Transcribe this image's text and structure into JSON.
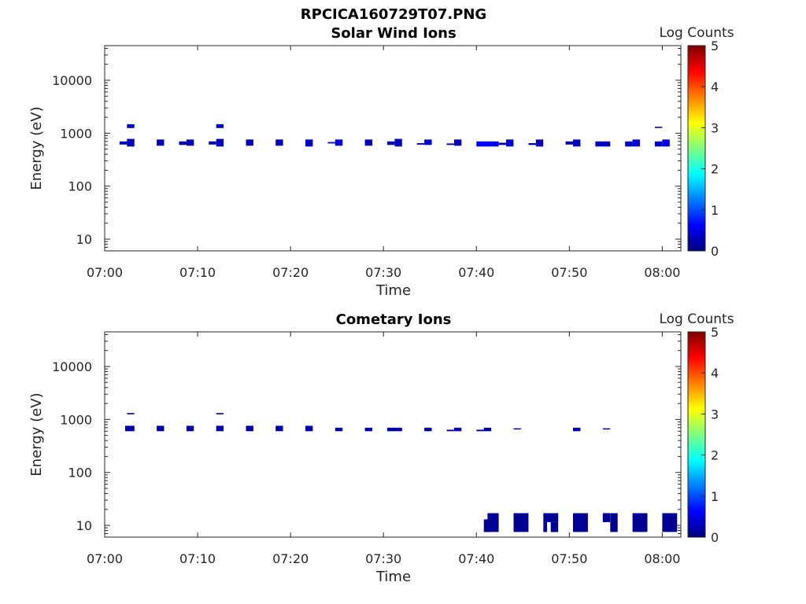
{
  "figure_title": "RPCICA160729T07.PNG",
  "colormap": [
    "#00007f",
    "#0000ff",
    "#007fff",
    "#00ffff",
    "#7fff7f",
    "#ffff00",
    "#ff7f00",
    "#ff0000",
    "#7f0000"
  ],
  "chart_data": [
    {
      "type": "heatmap",
      "title": "Solar Wind Ions",
      "xlabel": "Time",
      "ylabel": "Energy (eV)",
      "x_ticks": [
        "07:00",
        "07:10",
        "07:20",
        "07:30",
        "07:40",
        "07:50",
        "08:00"
      ],
      "x_range_minutes": [
        0,
        62
      ],
      "y_ticks": [
        "10",
        "100",
        "1000",
        "10000"
      ],
      "y_scale": "log",
      "y_range": [
        6,
        45000
      ],
      "colorbar": {
        "label": "Log Counts",
        "ticks": [
          "0",
          "1",
          "2",
          "3",
          "4",
          "5"
        ],
        "range": [
          0,
          5
        ]
      },
      "cells": [
        {
          "t0": 1.6,
          "t1": 2.4,
          "e0": 610,
          "e1": 700,
          "v": 0.2
        },
        {
          "t0": 2.4,
          "t1": 3.2,
          "e0": 560,
          "e1": 780,
          "v": 0.3
        },
        {
          "t0": 2.4,
          "t1": 3.2,
          "e0": 1250,
          "e1": 1480,
          "v": 0.3
        },
        {
          "t0": 5.6,
          "t1": 6.4,
          "e0": 580,
          "e1": 760,
          "v": 0.3
        },
        {
          "t0": 8.0,
          "t1": 8.8,
          "e0": 600,
          "e1": 700,
          "v": 0.2
        },
        {
          "t0": 8.8,
          "t1": 9.6,
          "e0": 580,
          "e1": 760,
          "v": 0.3
        },
        {
          "t0": 11.2,
          "t1": 12.0,
          "e0": 610,
          "e1": 700,
          "v": 0.2
        },
        {
          "t0": 12.0,
          "t1": 12.8,
          "e0": 560,
          "e1": 780,
          "v": 0.3
        },
        {
          "t0": 12.0,
          "t1": 12.8,
          "e0": 1250,
          "e1": 1480,
          "v": 0.3
        },
        {
          "t0": 15.2,
          "t1": 16.0,
          "e0": 580,
          "e1": 760,
          "v": 0.3
        },
        {
          "t0": 18.4,
          "t1": 19.2,
          "e0": 580,
          "e1": 760,
          "v": 0.3
        },
        {
          "t0": 21.6,
          "t1": 22.4,
          "e0": 560,
          "e1": 760,
          "v": 0.3
        },
        {
          "t0": 24.0,
          "t1": 24.8,
          "e0": 640,
          "e1": 680,
          "v": 0.2
        },
        {
          "t0": 24.8,
          "t1": 25.6,
          "e0": 580,
          "e1": 760,
          "v": 0.4
        },
        {
          "t0": 28.0,
          "t1": 28.8,
          "e0": 580,
          "e1": 760,
          "v": 0.3
        },
        {
          "t0": 30.4,
          "t1": 31.2,
          "e0": 600,
          "e1": 700,
          "v": 0.2
        },
        {
          "t0": 31.2,
          "t1": 32.0,
          "e0": 560,
          "e1": 780,
          "v": 0.3
        },
        {
          "t0": 33.6,
          "t1": 34.4,
          "e0": 610,
          "e1": 650,
          "v": 0.2
        },
        {
          "t0": 34.4,
          "t1": 35.2,
          "e0": 600,
          "e1": 760,
          "v": 0.4
        },
        {
          "t0": 36.8,
          "t1": 37.6,
          "e0": 600,
          "e1": 640,
          "v": 0.2
        },
        {
          "t0": 37.6,
          "t1": 38.4,
          "e0": 580,
          "e1": 760,
          "v": 0.3
        },
        {
          "t0": 40.0,
          "t1": 41.6,
          "e0": 560,
          "e1": 700,
          "v": 0.6
        },
        {
          "t0": 41.6,
          "t1": 42.4,
          "e0": 560,
          "e1": 700,
          "v": 0.5
        },
        {
          "t0": 42.4,
          "t1": 43.2,
          "e0": 600,
          "e1": 660,
          "v": 0.2
        },
        {
          "t0": 43.2,
          "t1": 44.0,
          "e0": 560,
          "e1": 760,
          "v": 0.4
        },
        {
          "t0": 45.6,
          "t1": 46.4,
          "e0": 600,
          "e1": 650,
          "v": 0.2
        },
        {
          "t0": 46.4,
          "t1": 47.2,
          "e0": 560,
          "e1": 760,
          "v": 0.3
        },
        {
          "t0": 49.6,
          "t1": 50.4,
          "e0": 610,
          "e1": 700,
          "v": 0.2
        },
        {
          "t0": 50.4,
          "t1": 51.2,
          "e0": 560,
          "e1": 760,
          "v": 0.3
        },
        {
          "t0": 52.8,
          "t1": 54.4,
          "e0": 560,
          "e1": 700,
          "v": 0.3
        },
        {
          "t0": 56.0,
          "t1": 56.8,
          "e0": 560,
          "e1": 700,
          "v": 0.3
        },
        {
          "t0": 56.8,
          "t1": 57.6,
          "e0": 560,
          "e1": 760,
          "v": 0.4
        },
        {
          "t0": 59.2,
          "t1": 60.0,
          "e0": 560,
          "e1": 700,
          "v": 0.3
        },
        {
          "t0": 60.0,
          "t1": 60.8,
          "e0": 560,
          "e1": 760,
          "v": 0.5
        },
        {
          "t0": 59.2,
          "t1": 60.0,
          "e0": 1250,
          "e1": 1320,
          "v": 0.3
        }
      ]
    },
    {
      "type": "heatmap",
      "title": "Cometary Ions",
      "xlabel": "Time",
      "ylabel": "Energy (eV)",
      "x_ticks": [
        "07:00",
        "07:10",
        "07:20",
        "07:30",
        "07:40",
        "07:50",
        "08:00"
      ],
      "x_range_minutes": [
        0,
        62
      ],
      "y_ticks": [
        "10",
        "100",
        "1000",
        "10000"
      ],
      "y_scale": "log",
      "y_range": [
        6,
        45000
      ],
      "colorbar": {
        "label": "Log Counts",
        "ticks": [
          "0",
          "1",
          "2",
          "3",
          "4",
          "5"
        ],
        "range": [
          0,
          5
        ]
      },
      "cells": [
        {
          "t0": 2.2,
          "t1": 3.2,
          "e0": 600,
          "e1": 760,
          "v": 0.2
        },
        {
          "t0": 2.4,
          "t1": 3.2,
          "e0": 1250,
          "e1": 1320,
          "v": 0.2
        },
        {
          "t0": 5.6,
          "t1": 6.4,
          "e0": 600,
          "e1": 760,
          "v": 0.2
        },
        {
          "t0": 8.8,
          "t1": 9.6,
          "e0": 600,
          "e1": 760,
          "v": 0.2
        },
        {
          "t0": 12.0,
          "t1": 12.8,
          "e0": 600,
          "e1": 760,
          "v": 0.2
        },
        {
          "t0": 12.0,
          "t1": 12.8,
          "e0": 1250,
          "e1": 1320,
          "v": 0.2
        },
        {
          "t0": 15.2,
          "t1": 16.0,
          "e0": 600,
          "e1": 760,
          "v": 0.2
        },
        {
          "t0": 18.4,
          "t1": 19.2,
          "e0": 600,
          "e1": 760,
          "v": 0.2
        },
        {
          "t0": 21.6,
          "t1": 22.4,
          "e0": 600,
          "e1": 760,
          "v": 0.2
        },
        {
          "t0": 24.8,
          "t1": 25.6,
          "e0": 600,
          "e1": 700,
          "v": 0.2
        },
        {
          "t0": 28.0,
          "t1": 28.8,
          "e0": 600,
          "e1": 700,
          "v": 0.2
        },
        {
          "t0": 30.4,
          "t1": 32.0,
          "e0": 600,
          "e1": 700,
          "v": 0.2
        },
        {
          "t0": 34.4,
          "t1": 35.2,
          "e0": 600,
          "e1": 700,
          "v": 0.2
        },
        {
          "t0": 36.8,
          "t1": 37.6,
          "e0": 600,
          "e1": 640,
          "v": 0.2
        },
        {
          "t0": 37.6,
          "t1": 38.4,
          "e0": 600,
          "e1": 700,
          "v": 0.2
        },
        {
          "t0": 40.0,
          "t1": 40.8,
          "e0": 600,
          "e1": 640,
          "v": 0.2
        },
        {
          "t0": 40.8,
          "t1": 41.6,
          "e0": 600,
          "e1": 700,
          "v": 0.2
        },
        {
          "t0": 44.0,
          "t1": 44.8,
          "e0": 650,
          "e1": 680,
          "v": 0.2
        },
        {
          "t0": 50.4,
          "t1": 51.2,
          "e0": 600,
          "e1": 700,
          "v": 0.2
        },
        {
          "t0": 53.6,
          "t1": 54.4,
          "e0": 650,
          "e1": 680,
          "v": 0.2
        },
        {
          "t0": 40.8,
          "t1": 41.6,
          "e0": 7.5,
          "e1": 13,
          "v": 0.1
        },
        {
          "t0": 41.2,
          "t1": 42.4,
          "e0": 7.5,
          "e1": 17,
          "v": 0.1
        },
        {
          "t0": 44.0,
          "t1": 45.6,
          "e0": 7.5,
          "e1": 17,
          "v": 0.1
        },
        {
          "t0": 47.2,
          "t1": 48.8,
          "e0": 11.5,
          "e1": 17,
          "v": 0.1
        },
        {
          "t0": 47.2,
          "t1": 47.6,
          "e0": 7.5,
          "e1": 11.5,
          "v": 0.1
        },
        {
          "t0": 48.0,
          "t1": 48.8,
          "e0": 7.5,
          "e1": 11.5,
          "v": 0.1
        },
        {
          "t0": 50.4,
          "t1": 52.0,
          "e0": 7.5,
          "e1": 17,
          "v": 0.1
        },
        {
          "t0": 53.6,
          "t1": 54.4,
          "e0": 11.5,
          "e1": 17,
          "v": 0.1
        },
        {
          "t0": 54.4,
          "t1": 55.2,
          "e0": 7.5,
          "e1": 17,
          "v": 0.1
        },
        {
          "t0": 56.8,
          "t1": 58.4,
          "e0": 7.5,
          "e1": 17,
          "v": 0.1
        },
        {
          "t0": 60.0,
          "t1": 61.6,
          "e0": 7.5,
          "e1": 17,
          "v": 0.1
        }
      ]
    }
  ]
}
